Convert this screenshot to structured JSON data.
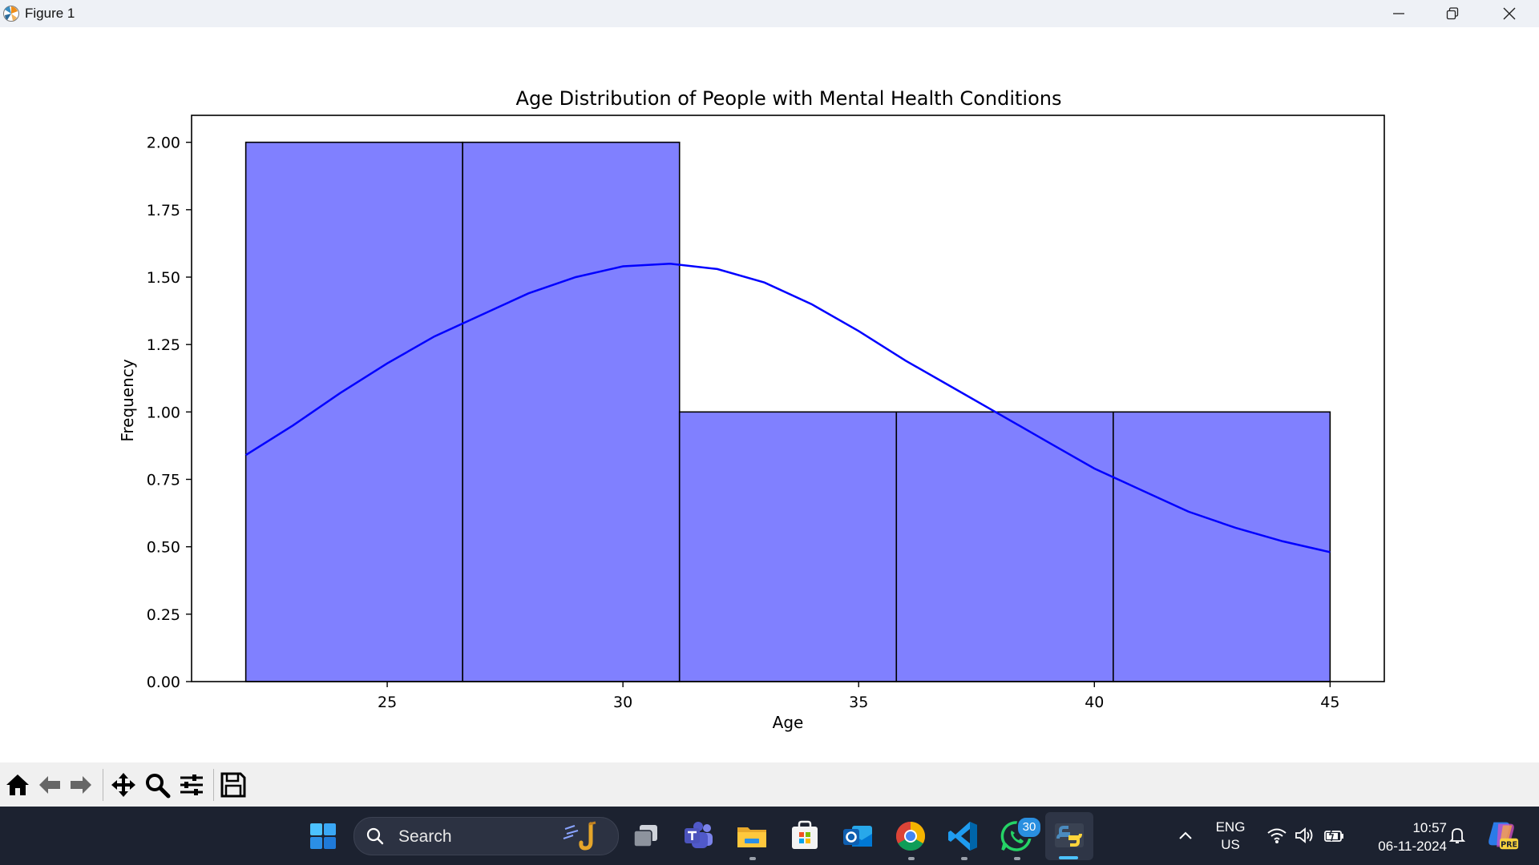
{
  "window": {
    "title": "Figure 1"
  },
  "chart_data": {
    "type": "bar",
    "subtype": "histogram-with-kde",
    "title": "Age Distribution of People with Mental Health Conditions",
    "xlabel": "Age",
    "ylabel": "Frequency",
    "xlim": [
      20.85,
      46.15
    ],
    "ylim": [
      0,
      2.1
    ],
    "bins": [
      {
        "x0": 22.0,
        "x1": 26.6,
        "count": 2
      },
      {
        "x0": 26.6,
        "x1": 31.2,
        "count": 2
      },
      {
        "x0": 31.2,
        "x1": 35.8,
        "count": 1
      },
      {
        "x0": 35.8,
        "x1": 40.4,
        "count": 1
      },
      {
        "x0": 40.4,
        "x1": 45.0,
        "count": 1
      }
    ],
    "kde": {
      "x": [
        22,
        23,
        24,
        25,
        26,
        27,
        28,
        29,
        30,
        31,
        32,
        33,
        34,
        35,
        36,
        37,
        38,
        39,
        40,
        41,
        42,
        43,
        44,
        45
      ],
      "y": [
        0.84,
        0.95,
        1.07,
        1.18,
        1.28,
        1.36,
        1.44,
        1.5,
        1.54,
        1.55,
        1.53,
        1.48,
        1.4,
        1.3,
        1.19,
        1.09,
        0.99,
        0.89,
        0.79,
        0.71,
        0.63,
        0.57,
        0.52,
        0.48
      ]
    },
    "xticks": [
      "25",
      "30",
      "35",
      "40",
      "45"
    ],
    "xtick_values": [
      25,
      30,
      35,
      40,
      45
    ],
    "yticks": [
      "0.00",
      "0.25",
      "0.50",
      "0.75",
      "1.00",
      "1.25",
      "1.50",
      "1.75",
      "2.00"
    ],
    "ytick_values": [
      0,
      0.25,
      0.5,
      0.75,
      1.0,
      1.25,
      1.5,
      1.75,
      2.0
    ],
    "bar_color": "#8080ff",
    "line_color": "#0000ff",
    "grid": false,
    "legend": false
  },
  "toolbar": {
    "buttons": [
      "home-icon",
      "back-arrow-icon",
      "forward-arrow-icon",
      "pan-icon",
      "zoom-icon",
      "configure-subplots-icon",
      "save-icon"
    ]
  },
  "taskbar": {
    "search_placeholder": "Search",
    "whatsapp_badge": "30",
    "language_line1": "ENG",
    "language_line2": "US",
    "time": "10:57",
    "date": "06-11-2024",
    "pre_badge": "PRE"
  }
}
